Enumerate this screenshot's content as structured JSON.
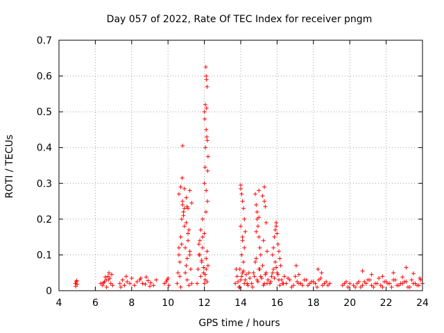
{
  "chart_data": {
    "type": "scatter",
    "title": "Day 057 of 2022, Rate Of TEC Index for receiver pngm",
    "xlabel": "GPS time / hours",
    "ylabel": "ROTI / TECUs",
    "xlim": [
      4,
      24
    ],
    "ylim": [
      0,
      0.7
    ],
    "xticks": [
      "4",
      "6",
      "8",
      "10",
      "12",
      "14",
      "16",
      "18",
      "20",
      "22",
      "24"
    ],
    "yticks": [
      "0",
      "0.1",
      "0.2",
      "0.3",
      "0.4",
      "0.5",
      "0.6",
      "0.7"
    ],
    "grid": true,
    "marker": "plus",
    "color": "#ff0000",
    "series": [
      {
        "values_x": [
          4.9,
          4.95,
          5.0,
          4.92,
          4.98,
          6.3,
          6.4,
          6.5,
          6.6,
          6.7,
          6.75,
          6.8,
          6.85,
          6.9,
          6.95,
          6.62,
          6.72,
          6.55,
          6.45,
          7.35,
          7.5,
          7.6,
          7.75,
          7.9,
          8.0,
          8.15,
          8.3,
          8.45,
          8.6,
          8.75,
          8.9,
          9.05,
          9.2,
          9.35,
          7.7,
          8.5,
          9.0,
          7.4,
          8.8,
          9.8,
          9.95,
          10.05,
          9.9,
          10.0,
          10.5,
          10.55,
          10.6,
          10.65,
          10.7,
          10.75,
          10.8,
          10.85,
          10.9,
          10.95,
          11.0,
          11.05,
          11.1,
          11.15,
          11.2,
          11.25,
          11.3,
          10.6,
          10.7,
          10.8,
          10.9,
          11.0,
          11.1,
          11.2,
          10.65,
          10.75,
          10.85,
          10.95,
          11.05,
          11.15,
          10.8,
          10.78,
          10.9,
          11.0,
          11.1,
          11.2,
          11.3,
          10.7,
          10.6,
          11.05,
          11.6,
          11.65,
          11.7,
          11.75,
          11.8,
          11.85,
          11.9,
          11.95,
          12.0,
          12.05,
          12.1,
          12.15,
          12.2,
          11.7,
          11.8,
          11.9,
          12.0,
          12.1,
          11.75,
          11.85,
          11.95,
          12.05,
          12.15,
          12.08,
          12.1,
          12.12,
          12.15,
          12.05,
          12.0,
          12.02,
          12.1,
          12.13,
          12.16,
          12.06,
          12.2,
          12.04,
          12.18,
          12.0,
          12.1,
          12.17,
          12.09,
          11.9,
          12.12,
          13.7,
          13.8,
          13.9,
          14.0,
          14.1,
          14.2,
          14.3,
          14.4,
          14.5,
          13.75,
          13.85,
          13.95,
          14.05,
          14.15,
          14.25,
          14.35,
          14.45,
          14.0,
          14.05,
          14.1,
          14.15,
          14.2,
          14.0,
          14.1,
          14.2,
          14.05,
          14.15,
          13.95,
          14.25,
          14.1,
          14.0,
          14.6,
          14.7,
          14.8,
          14.9,
          15.0,
          15.1,
          15.2,
          15.3,
          15.4,
          15.5,
          14.65,
          14.75,
          14.85,
          14.95,
          15.05,
          15.15,
          15.25,
          15.35,
          15.45,
          14.8,
          14.85,
          14.9,
          14.95,
          15.0,
          15.05,
          15.1,
          14.9,
          15.0,
          15.2,
          15.3,
          15.35,
          15.4,
          15.25,
          15.45,
          14.85,
          15.0,
          15.3,
          15.6,
          15.7,
          15.8,
          15.9,
          16.0,
          16.1,
          16.2,
          16.3,
          16.4,
          15.65,
          15.75,
          15.85,
          15.95,
          16.05,
          16.15,
          16.25,
          16.35,
          15.8,
          15.85,
          15.9,
          15.95,
          16.0,
          16.05,
          15.75,
          16.1,
          15.95,
          16.15,
          16.5,
          16.7,
          16.9,
          17.1,
          17.3,
          17.5,
          17.7,
          17.9,
          18.1,
          18.3,
          18.5,
          18.7,
          18.9,
          16.6,
          16.8,
          17.0,
          17.2,
          17.4,
          17.6,
          17.8,
          18.0,
          18.2,
          18.4,
          18.6,
          18.8,
          17.05,
          18.45,
          17.2,
          18.25,
          19.6,
          19.7,
          19.8,
          19.9,
          20.0,
          20.2,
          20.4,
          20.6,
          20.8,
          21.0,
          21.2,
          21.4,
          21.6,
          21.8,
          22.0,
          22.2,
          22.4,
          22.6,
          22.8,
          23.0,
          23.2,
          23.4,
          23.6,
          23.8,
          24.0,
          20.3,
          20.5,
          20.7,
          20.9,
          21.1,
          21.3,
          21.5,
          21.7,
          21.9,
          22.1,
          22.3,
          22.5,
          22.7,
          22.9,
          23.1,
          23.3,
          23.5,
          23.7,
          23.9,
          20.7,
          21.2,
          21.8,
          22.4,
          22.9,
          23.5,
          23.1,
          23.85
        ],
        "values_y": [
          0.02,
          0.025,
          0.018,
          0.012,
          0.028,
          0.02,
          0.015,
          0.025,
          0.03,
          0.04,
          0.05,
          0.035,
          0.02,
          0.045,
          0.015,
          0.01,
          0.03,
          0.038,
          0.022,
          0.02,
          0.03,
          0.015,
          0.025,
          0.02,
          0.035,
          0.015,
          0.025,
          0.03,
          0.02,
          0.018,
          0.028,
          0.022,
          0.015,
          0.03,
          0.04,
          0.035,
          0.012,
          0.01,
          0.038,
          0.02,
          0.03,
          0.015,
          0.025,
          0.035,
          0.02,
          0.05,
          0.1,
          0.08,
          0.15,
          0.2,
          0.25,
          0.22,
          0.18,
          0.12,
          0.07,
          0.03,
          0.14,
          0.17,
          0.1,
          0.06,
          0.02,
          0.27,
          0.29,
          0.24,
          0.23,
          0.19,
          0.16,
          0.11,
          0.04,
          0.13,
          0.21,
          0.05,
          0.09,
          0.015,
          0.405,
          0.315,
          0.285,
          0.26,
          0.23,
          0.28,
          0.245,
          0.01,
          0.12,
          0.235,
          0.02,
          0.06,
          0.1,
          0.14,
          0.17,
          0.08,
          0.12,
          0.05,
          0.16,
          0.03,
          0.09,
          0.11,
          0.07,
          0.13,
          0.04,
          0.15,
          0.02,
          0.06,
          0.1,
          0.085,
          0.065,
          0.045,
          0.025,
          0.625,
          0.6,
          0.59,
          0.57,
          0.52,
          0.5,
          0.48,
          0.45,
          0.43,
          0.42,
          0.4,
          0.375,
          0.345,
          0.335,
          0.3,
          0.28,
          0.25,
          0.22,
          0.2,
          0.51,
          0.02,
          0.04,
          0.01,
          0.03,
          0.05,
          0.02,
          0.045,
          0.015,
          0.035,
          0.06,
          0.025,
          0.01,
          0.04,
          0.055,
          0.03,
          0.02,
          0.05,
          0.295,
          0.27,
          0.25,
          0.23,
          0.2,
          0.18,
          0.15,
          0.12,
          0.1,
          0.08,
          0.06,
          0.165,
          0.14,
          0.285,
          0.02,
          0.05,
          0.08,
          0.03,
          0.06,
          0.04,
          0.07,
          0.02,
          0.05,
          0.03,
          0.01,
          0.04,
          0.09,
          0.025,
          0.06,
          0.035,
          0.015,
          0.045,
          0.02,
          0.27,
          0.24,
          0.2,
          0.18,
          0.15,
          0.12,
          0.1,
          0.22,
          0.28,
          0.265,
          0.25,
          0.235,
          0.19,
          0.14,
          0.11,
          0.165,
          0.205,
          0.29,
          0.02,
          0.04,
          0.06,
          0.08,
          0.05,
          0.03,
          0.07,
          0.02,
          0.04,
          0.025,
          0.05,
          0.035,
          0.065,
          0.045,
          0.015,
          0.03,
          0.02,
          0.12,
          0.15,
          0.17,
          0.18,
          0.16,
          0.13,
          0.1,
          0.11,
          0.19,
          0.09,
          0.02,
          0.03,
          0.015,
          0.025,
          0.02,
          0.03,
          0.015,
          0.025,
          0.02,
          0.03,
          0.015,
          0.025,
          0.02,
          0.035,
          0.01,
          0.04,
          0.02,
          0.015,
          0.03,
          0.02,
          0.025,
          0.01,
          0.035,
          0.02,
          0.015,
          0.07,
          0.05,
          0.045,
          0.06,
          0.015,
          0.02,
          0.025,
          0.01,
          0.02,
          0.015,
          0.02,
          0.01,
          0.025,
          0.03,
          0.015,
          0.02,
          0.035,
          0.01,
          0.025,
          0.02,
          0.03,
          0.015,
          0.02,
          0.025,
          0.01,
          0.03,
          0.02,
          0.015,
          0.02,
          0.01,
          0.025,
          0.015,
          0.02,
          0.03,
          0.01,
          0.02,
          0.015,
          0.025,
          0.02,
          0.01,
          0.03,
          0.015,
          0.02,
          0.025,
          0.01,
          0.02,
          0.015,
          0.03,
          0.055,
          0.045,
          0.04,
          0.05,
          0.038,
          0.048,
          0.065,
          0.035
        ]
      }
    ]
  }
}
